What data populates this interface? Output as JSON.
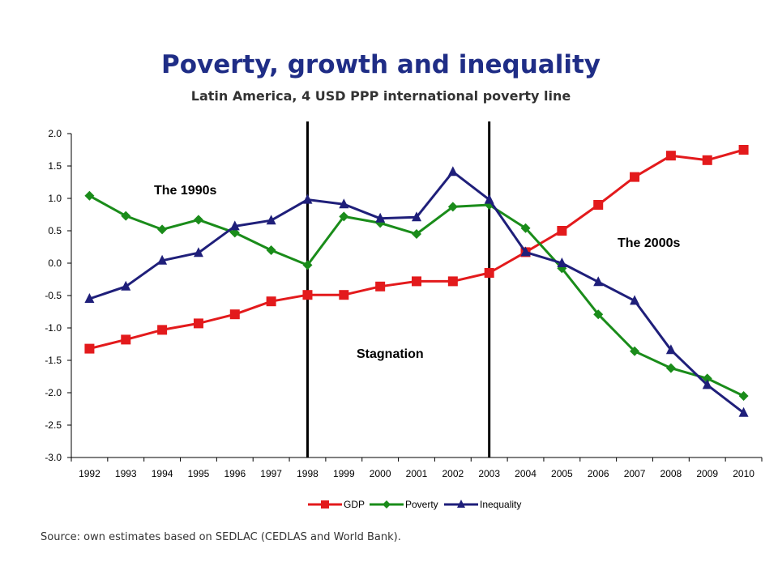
{
  "chart_data": {
    "type": "line",
    "title": "Poverty, growth and inequality",
    "subtitle": "Latin America, 4 USD PPP international poverty line",
    "x": [
      "1992",
      "1993",
      "1994",
      "1995",
      "1996",
      "1997",
      "1998",
      "1999",
      "2000",
      "2001",
      "2002",
      "2003",
      "2004",
      "2005",
      "2006",
      "2007",
      "2008",
      "2009",
      "2010"
    ],
    "ylim": [
      -3.0,
      2.0
    ],
    "yticks": [
      "2.0",
      "1.5",
      "1.0",
      "0.5",
      "0.0",
      "-0.5",
      "-1.0",
      "-1.5",
      "-2.0",
      "-2.5",
      "-3.0"
    ],
    "ytick_values": [
      2.0,
      1.5,
      1.0,
      0.5,
      0.0,
      -0.5,
      -1.0,
      -1.5,
      -2.0,
      -2.5,
      -3.0
    ],
    "series": [
      {
        "name": "GDP",
        "color": "#e31a1c",
        "marker": "square",
        "values": [
          -1.32,
          -1.18,
          -1.03,
          -0.93,
          -0.79,
          -0.59,
          -0.49,
          -0.49,
          -0.36,
          -0.28,
          -0.28,
          -0.15,
          0.17,
          0.5,
          0.9,
          1.33,
          1.66,
          1.59,
          1.75
        ]
      },
      {
        "name": "Poverty",
        "color": "#1a8c1a",
        "marker": "diamond",
        "values": [
          1.04,
          0.73,
          0.52,
          0.67,
          0.47,
          0.2,
          -0.03,
          0.72,
          0.62,
          0.45,
          0.87,
          0.9,
          0.54,
          -0.08,
          -0.79,
          -1.36,
          -1.62,
          -1.78,
          -2.05
        ]
      },
      {
        "name": "Inequality",
        "color": "#1f1f7a",
        "marker": "triangle",
        "values": [
          -0.55,
          -0.36,
          0.04,
          0.16,
          0.57,
          0.66,
          0.98,
          0.91,
          0.69,
          0.71,
          1.41,
          0.98,
          0.17,
          0.0,
          -0.29,
          -0.58,
          -1.34,
          -1.88,
          -2.31
        ]
      }
    ],
    "vertical_lines_after_years": [
      "1998",
      "2003"
    ],
    "annotations": [
      "The 1990s",
      "Stagnation",
      "The 2000s"
    ],
    "legend_position": "bottom",
    "grid": false
  },
  "source_note": "Source: own estimates based on SEDLAC (CEDLAS and World Bank)."
}
